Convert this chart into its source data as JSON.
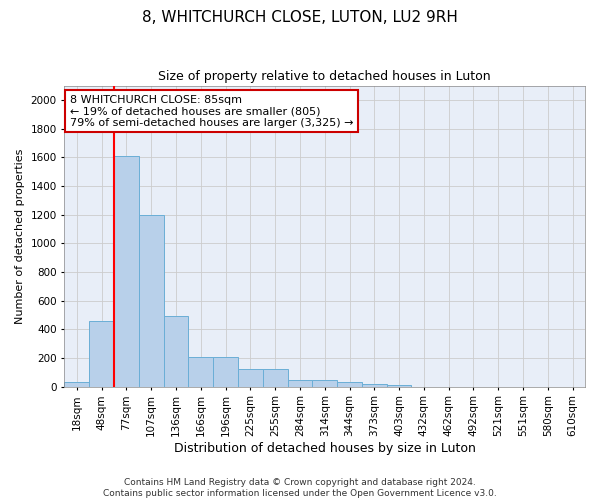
{
  "title": "8, WHITCHURCH CLOSE, LUTON, LU2 9RH",
  "subtitle": "Size of property relative to detached houses in Luton",
  "xlabel": "Distribution of detached houses by size in Luton",
  "ylabel": "Number of detached properties",
  "bar_color": "#b8d0ea",
  "bar_edge_color": "#6aaed6",
  "grid_color": "#cccccc",
  "background_color": "#e8eef8",
  "categories": [
    "18sqm",
    "48sqm",
    "77sqm",
    "107sqm",
    "136sqm",
    "166sqm",
    "196sqm",
    "225sqm",
    "255sqm",
    "284sqm",
    "314sqm",
    "344sqm",
    "373sqm",
    "403sqm",
    "432sqm",
    "462sqm",
    "492sqm",
    "521sqm",
    "551sqm",
    "580sqm",
    "610sqm"
  ],
  "values": [
    35,
    460,
    1610,
    1200,
    490,
    210,
    210,
    125,
    125,
    45,
    45,
    30,
    20,
    12,
    0,
    0,
    0,
    0,
    0,
    0,
    0
  ],
  "ylim": [
    0,
    2100
  ],
  "yticks": [
    0,
    200,
    400,
    600,
    800,
    1000,
    1200,
    1400,
    1600,
    1800,
    2000
  ],
  "property_line_index": 2,
  "annotation_line1": "8 WHITCHURCH CLOSE: 85sqm",
  "annotation_line2": "← 19% of detached houses are smaller (805)",
  "annotation_line3": "79% of semi-detached houses are larger (3,325) →",
  "annotation_box_color": "#ffffff",
  "annotation_border_color": "#cc0000",
  "footer_line1": "Contains HM Land Registry data © Crown copyright and database right 2024.",
  "footer_line2": "Contains public sector information licensed under the Open Government Licence v3.0.",
  "title_fontsize": 11,
  "subtitle_fontsize": 9,
  "ylabel_fontsize": 8,
  "xlabel_fontsize": 9,
  "tick_fontsize": 7.5,
  "annotation_fontsize": 8,
  "footer_fontsize": 6.5
}
